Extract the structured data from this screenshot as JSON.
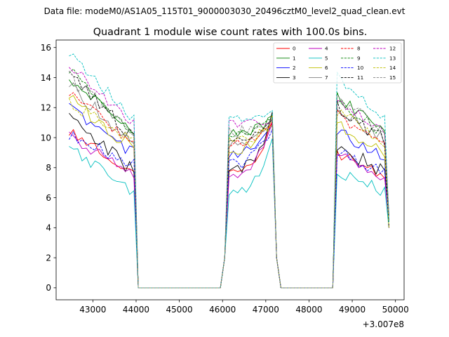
{
  "header": {
    "data_file": "Data file: modeM0/AS1A05_115T01_9000003030_20496cztM0_level2_quad_clean.evt"
  },
  "chart_data": {
    "type": "line",
    "title": "Quadrant 1 module wise count rates with 100.0s bins.",
    "xlabel": "",
    "ylabel": "",
    "x_offset_label": "+3.007e8",
    "xlim": [
      42150,
      50200
    ],
    "ylim": [
      -0.8,
      16.5
    ],
    "x_ticks": [
      43000,
      44000,
      45000,
      46000,
      47000,
      48000,
      49000,
      50000
    ],
    "x_tick_labels": [
      "43000",
      "44000",
      "45000",
      "46000",
      "47000",
      "48000",
      "49000",
      "50000"
    ],
    "y_ticks": [
      0,
      2,
      4,
      6,
      8,
      10,
      12,
      14,
      16
    ],
    "y_tick_labels": [
      "0",
      "2",
      "4",
      "6",
      "8",
      "10",
      "12",
      "14",
      "16"
    ],
    "grid": false,
    "legend_placement": "top-right",
    "legend_columns": 4,
    "x_start": 42450,
    "bin_width": 100,
    "segments": {
      "seg1": {
        "start": 42450,
        "end": 43950
      },
      "gap1": {
        "start": 44050,
        "end": 45950
      },
      "seg2": {
        "start": 46150,
        "end": 47150
      },
      "gap2": {
        "start": 47350,
        "end": 48550
      },
      "seg3": {
        "start": 48650,
        "end": 49850
      }
    },
    "series": [
      {
        "name": "0",
        "color": "#ff0000",
        "dash": "solid",
        "levels": [
          10.5,
          7.6,
          11.0,
          9.0
        ]
      },
      {
        "name": "1",
        "color": "#008000",
        "dash": "solid",
        "levels": [
          14.0,
          10.3,
          11.3,
          12.8
        ]
      },
      {
        "name": "2",
        "color": "#0000ff",
        "dash": "solid",
        "levels": [
          12.0,
          9.0,
          10.7,
          10.5
        ]
      },
      {
        "name": "3",
        "color": "#000000",
        "dash": "solid",
        "levels": [
          11.4,
          7.7,
          11.5,
          9.4
        ]
      },
      {
        "name": "4",
        "color": "#bf00bf",
        "dash": "solid",
        "levels": [
          10.1,
          7.5,
          11.0,
          9.0
        ]
      },
      {
        "name": "5",
        "color": "#00bfbf",
        "dash": "solid",
        "levels": [
          9.4,
          6.2,
          10.0,
          7.8
        ]
      },
      {
        "name": "6",
        "color": "#bfbf00",
        "dash": "solid",
        "levels": [
          12.6,
          9.2,
          11.2,
          11.0
        ]
      },
      {
        "name": "7",
        "color": "#808080",
        "dash": "solid",
        "levels": [
          13.5,
          9.5,
          11.3,
          12.0
        ]
      },
      {
        "name": "8",
        "color": "#ff0000",
        "dash": "dashed",
        "levels": [
          13.0,
          9.6,
          11.0,
          11.5
        ]
      },
      {
        "name": "9",
        "color": "#008000",
        "dash": "dashed",
        "levels": [
          14.5,
          10.2,
          11.3,
          12.5
        ]
      },
      {
        "name": "10",
        "color": "#0000ff",
        "dash": "dashed",
        "levels": [
          10.3,
          8.2,
          10.8,
          9.2
        ]
      },
      {
        "name": "11",
        "color": "#000000",
        "dash": "dashed",
        "levels": [
          14.2,
          10.0,
          11.4,
          12.0
        ]
      },
      {
        "name": "12",
        "color": "#bf00bf",
        "dash": "dashed",
        "levels": [
          14.8,
          10.9,
          11.2,
          12.6
        ]
      },
      {
        "name": "13",
        "color": "#00bfbf",
        "dash": "dashed",
        "levels": [
          15.5,
          11.3,
          11.8,
          14.0
        ]
      },
      {
        "name": "14",
        "color": "#bfbf00",
        "dash": "dashed",
        "levels": [
          12.4,
          9.7,
          11.0,
          11.8
        ]
      },
      {
        "name": "15",
        "color": "#808080",
        "dash": "dashed",
        "levels": [
          14.0,
          10.4,
          11.4,
          12.7
        ]
      }
    ]
  }
}
